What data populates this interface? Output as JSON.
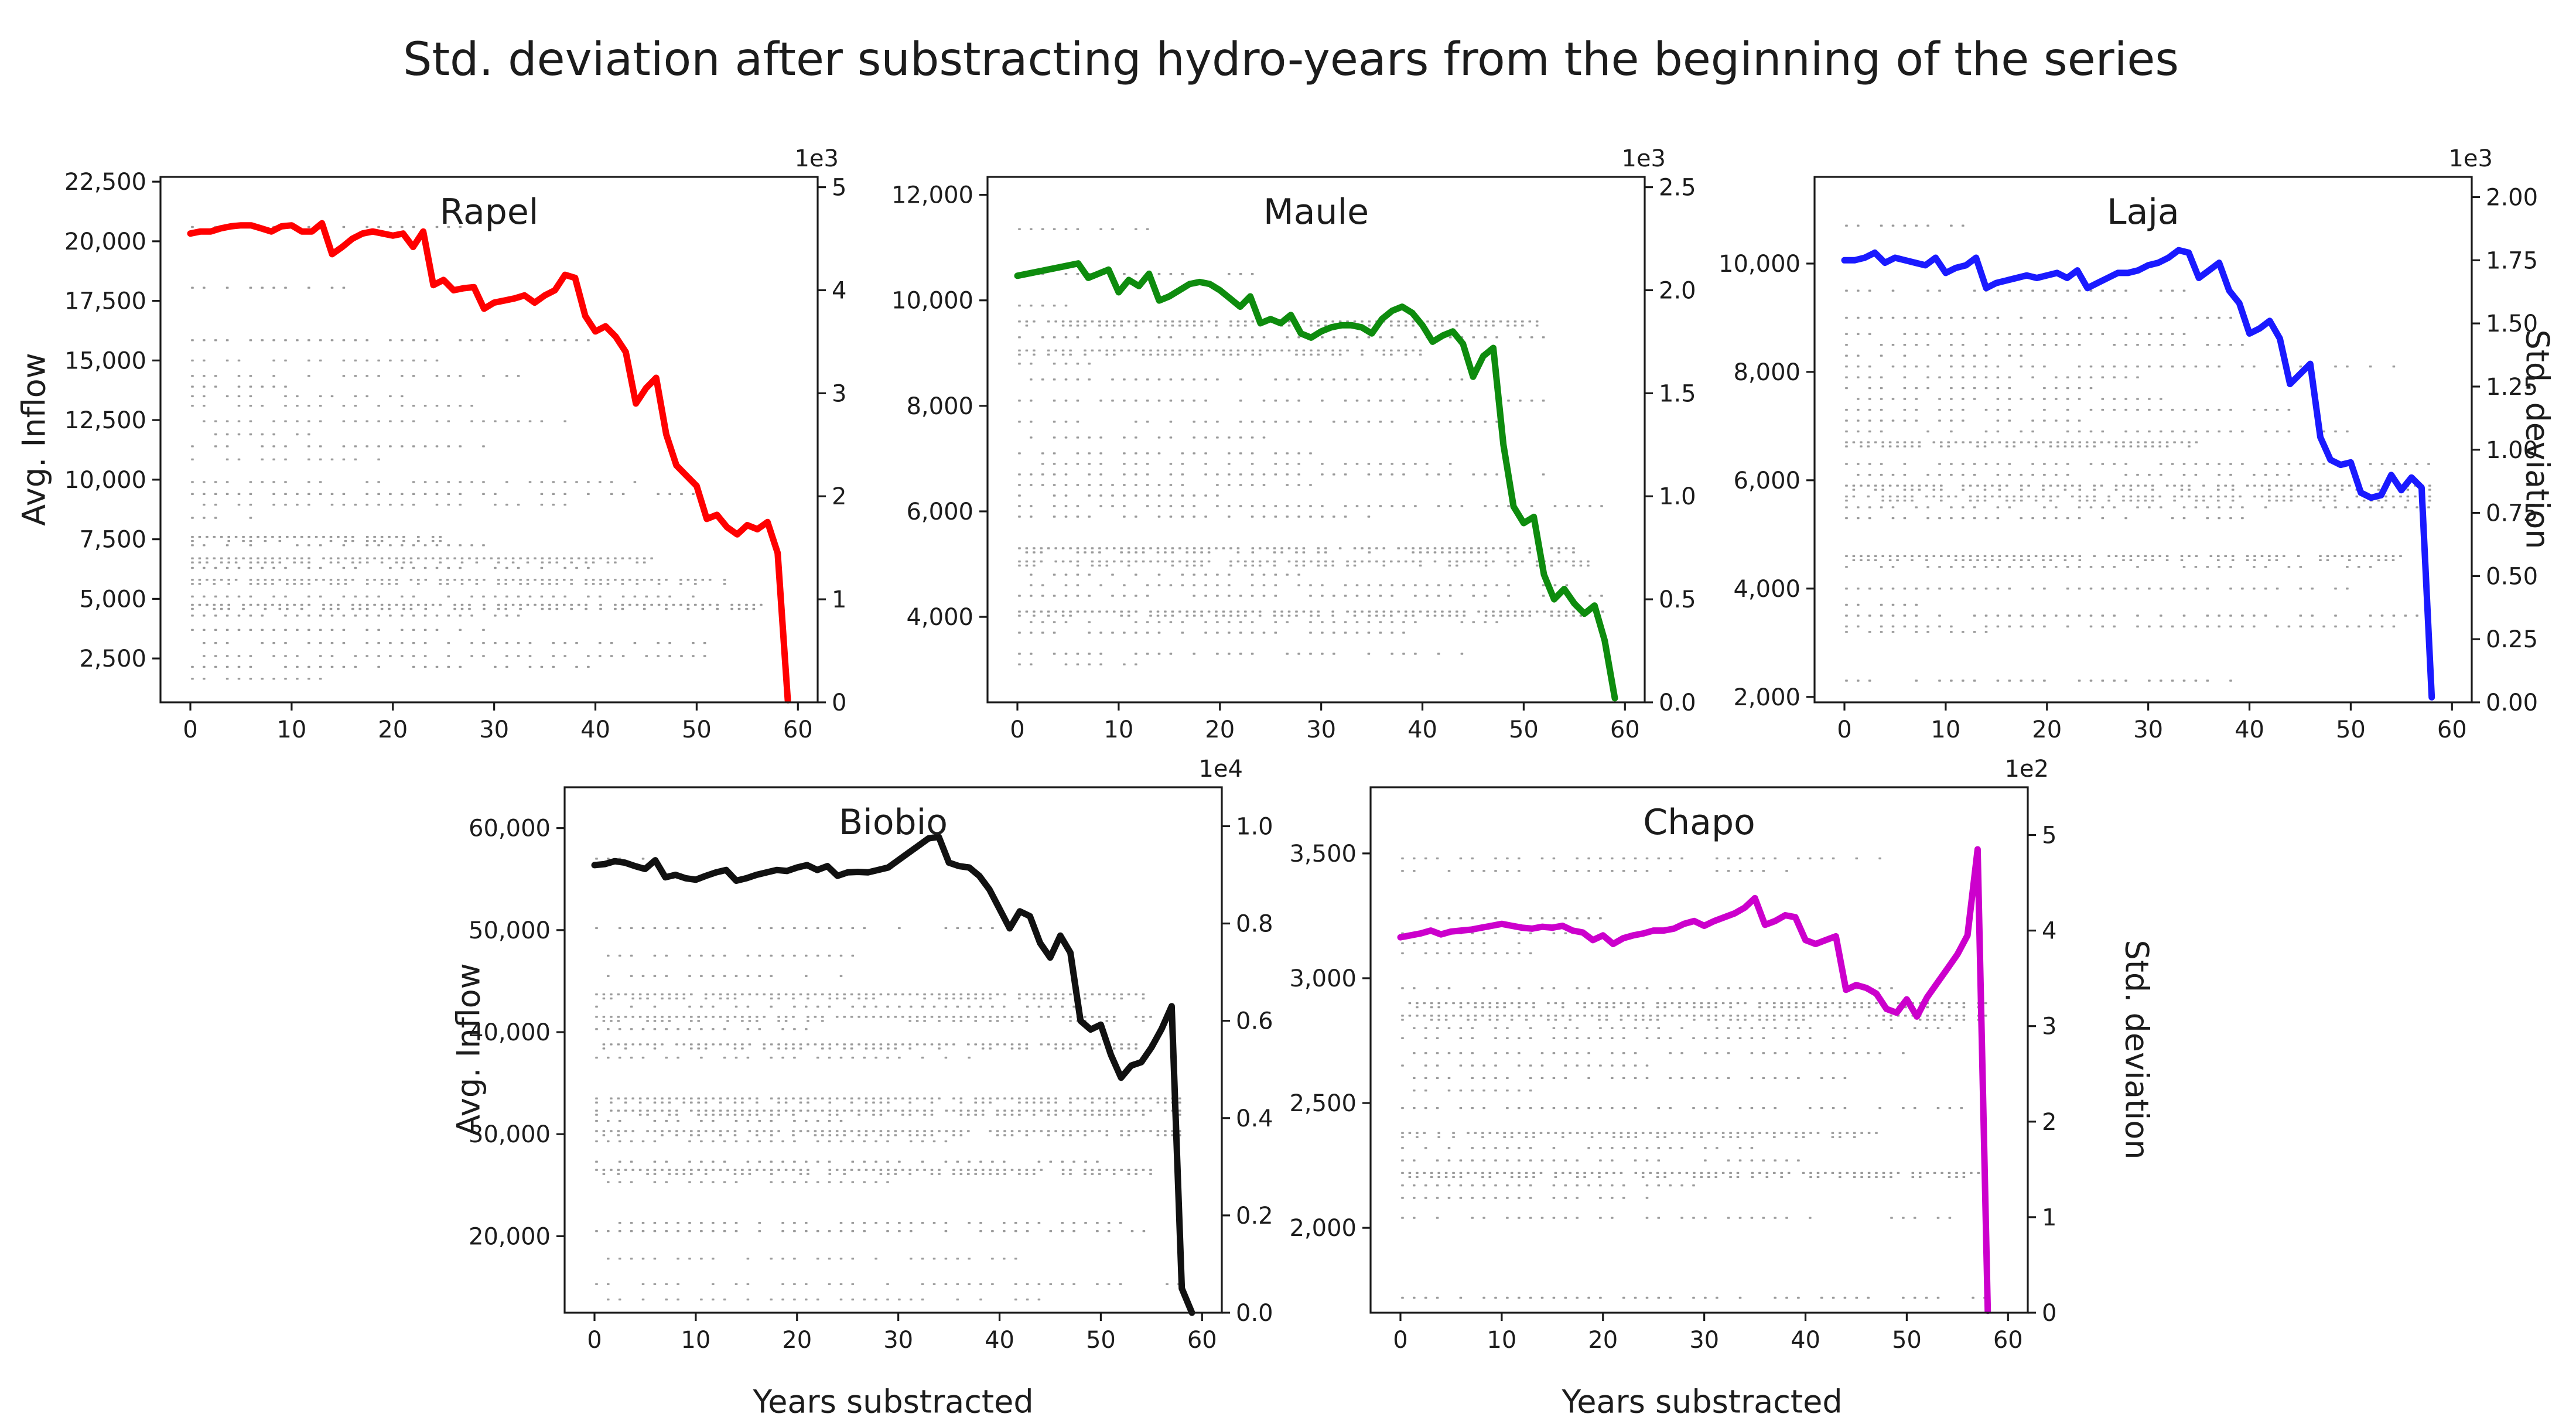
{
  "figure": {
    "suptitle": "Std. deviation after substracting hydro-years from the beginning of the series"
  },
  "labels": {
    "left_axis": "Avg. Inflow",
    "right_axis": "Std. deviation",
    "x_axis": "Years substracted"
  },
  "chart_data": [
    {
      "type": "line",
      "title": "Rapel",
      "line_color": "#ff0000",
      "x_ticks": [
        0,
        10,
        20,
        30,
        40,
        50,
        60
      ],
      "xlim": [
        -2.95,
        61.95
      ],
      "left_axis": {
        "ylim": [
          660,
          22700
        ],
        "ticks": [
          [
            2500,
            "2,500"
          ],
          [
            5000,
            "5,000"
          ],
          [
            7500,
            "7,500"
          ],
          [
            10000,
            "10,000"
          ],
          [
            12500,
            "12,500"
          ],
          [
            15000,
            "15,000"
          ],
          [
            17500,
            "17,500"
          ],
          [
            20000,
            "20,000"
          ],
          [
            22500,
            "22,500"
          ]
        ]
      },
      "right_axis": {
        "ylim": [
          0,
          5.1
        ],
        "offset": "1e3",
        "ticks": [
          [
            0,
            "0"
          ],
          [
            1,
            "1"
          ],
          [
            2,
            "2"
          ],
          [
            3,
            "3"
          ],
          [
            4,
            "4"
          ],
          [
            5,
            "5"
          ]
        ]
      },
      "series_y": [
        4.55,
        4.57,
        4.57,
        4.6,
        4.62,
        4.63,
        4.63,
        4.6,
        4.57,
        4.62,
        4.63,
        4.57,
        4.57,
        4.65,
        4.35,
        4.42,
        4.5,
        4.55,
        4.57,
        4.55,
        4.53,
        4.55,
        4.42,
        4.57,
        4.05,
        4.1,
        4.0,
        4.02,
        4.03,
        3.82,
        3.88,
        3.9,
        3.92,
        3.95,
        3.88,
        3.95,
        4.0,
        4.15,
        4.12,
        3.75,
        3.6,
        3.65,
        3.55,
        3.4,
        2.9,
        3.05,
        3.15,
        2.6,
        2.3,
        2.2,
        2.1,
        1.78,
        1.82,
        1.7,
        1.63,
        1.72,
        1.68,
        1.75,
        1.45,
        0.02
      ],
      "dot_rows": [
        [
          20600,
          27,
          0
        ],
        [
          18050,
          17,
          0
        ],
        [
          15850,
          40,
          0
        ],
        [
          15000,
          25,
          0
        ],
        [
          14350,
          33,
          0
        ],
        [
          13900,
          11,
          0
        ],
        [
          13500,
          23,
          0
        ],
        [
          13100,
          28,
          0
        ],
        [
          12450,
          37,
          0
        ],
        [
          11900,
          12,
          0
        ],
        [
          11400,
          31,
          0
        ],
        [
          10850,
          19,
          0
        ],
        [
          9900,
          45,
          0
        ],
        [
          9400,
          50,
          0
        ],
        [
          8950,
          37,
          0
        ],
        [
          8400,
          7,
          0
        ],
        [
          7600,
          25,
          1
        ],
        [
          7250,
          29,
          0
        ],
        [
          6700,
          46,
          1
        ],
        [
          6300,
          40,
          0
        ],
        [
          5800,
          53,
          1
        ],
        [
          5100,
          50,
          0
        ],
        [
          4750,
          57,
          1
        ],
        [
          4300,
          34,
          0
        ],
        [
          3700,
          30,
          0
        ],
        [
          3150,
          53,
          0
        ],
        [
          2600,
          53,
          0
        ],
        [
          2150,
          40,
          0
        ],
        [
          1650,
          13,
          0
        ]
      ]
    },
    {
      "type": "line",
      "title": "Maule",
      "line_color": "#0e8c0e",
      "x_ticks": [
        0,
        10,
        20,
        30,
        40,
        50,
        60
      ],
      "xlim": [
        -2.95,
        61.95
      ],
      "left_axis": {
        "ylim": [
          2380,
          12340
        ],
        "ticks": [
          [
            4000,
            "4,000"
          ],
          [
            6000,
            "6,000"
          ],
          [
            8000,
            "8,000"
          ],
          [
            10000,
            "10,000"
          ],
          [
            12000,
            "12,000"
          ]
        ]
      },
      "right_axis": {
        "ylim": [
          0,
          2.55
        ],
        "offset": "1e3",
        "ticks": [
          [
            0,
            "0.0"
          ],
          [
            0.5,
            "0.5"
          ],
          [
            1,
            "1.0"
          ],
          [
            1.5,
            "1.5"
          ],
          [
            2,
            "2.0"
          ],
          [
            2.5,
            "2.5"
          ]
        ]
      },
      "series_y": [
        2.07,
        2.08,
        2.09,
        2.1,
        2.11,
        2.12,
        2.13,
        2.06,
        2.08,
        2.1,
        1.99,
        2.05,
        2.02,
        2.08,
        1.95,
        1.97,
        2.0,
        2.03,
        2.04,
        2.03,
        2.0,
        1.96,
        1.92,
        1.97,
        1.84,
        1.86,
        1.84,
        1.88,
        1.79,
        1.77,
        1.8,
        1.82,
        1.83,
        1.83,
        1.82,
        1.79,
        1.86,
        1.9,
        1.92,
        1.89,
        1.83,
        1.75,
        1.78,
        1.8,
        1.74,
        1.58,
        1.68,
        1.72,
        1.25,
        0.95,
        0.87,
        0.9,
        0.62,
        0.5,
        0.55,
        0.48,
        0.43,
        0.47,
        0.3,
        0.02
      ],
      "dot_rows": [
        [
          11350,
          14,
          0
        ],
        [
          10500,
          24,
          0
        ],
        [
          9900,
          7,
          0
        ],
        [
          9600,
          52,
          1
        ],
        [
          9300,
          52,
          0
        ],
        [
          9050,
          40,
          1
        ],
        [
          8800,
          8,
          0
        ],
        [
          8500,
          45,
          0
        ],
        [
          8100,
          52,
          0
        ],
        [
          7700,
          48,
          0
        ],
        [
          7400,
          25,
          0
        ],
        [
          7100,
          30,
          0
        ],
        [
          6900,
          43,
          0
        ],
        [
          6700,
          52,
          0
        ],
        [
          6500,
          30,
          0
        ],
        [
          6300,
          20,
          0
        ],
        [
          6100,
          58,
          0
        ],
        [
          5900,
          35,
          0
        ],
        [
          5300,
          55,
          1
        ],
        [
          5050,
          57,
          1
        ],
        [
          4800,
          30,
          0
        ],
        [
          4600,
          55,
          0
        ],
        [
          4400,
          58,
          0
        ],
        [
          4100,
          58,
          1
        ],
        [
          3900,
          48,
          0
        ],
        [
          3700,
          40,
          0
        ],
        [
          3300,
          45,
          0
        ],
        [
          3100,
          12,
          0
        ]
      ]
    },
    {
      "type": "line",
      "title": "Laja",
      "line_color": "#1a1aff",
      "x_ticks": [
        0,
        10,
        20,
        30,
        40,
        50,
        60
      ],
      "xlim": [
        -2.95,
        61.95
      ],
      "left_axis": {
        "ylim": [
          1900,
          11600
        ],
        "ticks": [
          [
            2000,
            "2,000"
          ],
          [
            4000,
            "4,000"
          ],
          [
            6000,
            "6,000"
          ],
          [
            8000,
            "8,000"
          ],
          [
            10000,
            "10,000"
          ]
        ]
      },
      "right_axis": {
        "ylim": [
          0,
          2.08
        ],
        "offset": "1e3",
        "label_right": true,
        "ticks": [
          [
            0,
            "0.00"
          ],
          [
            0.25,
            "0.25"
          ],
          [
            0.5,
            "0.50"
          ],
          [
            0.75,
            "0.75"
          ],
          [
            1,
            "1.00"
          ],
          [
            1.25,
            "1.25"
          ],
          [
            1.5,
            "1.50"
          ],
          [
            1.75,
            "1.75"
          ],
          [
            2,
            "2.00"
          ]
        ]
      },
      "series_y": [
        1.75,
        1.75,
        1.76,
        1.78,
        1.74,
        1.76,
        1.75,
        1.74,
        1.73,
        1.76,
        1.7,
        1.72,
        1.73,
        1.76,
        1.64,
        1.66,
        1.67,
        1.68,
        1.69,
        1.68,
        1.69,
        1.7,
        1.68,
        1.71,
        1.64,
        1.66,
        1.68,
        1.7,
        1.7,
        1.71,
        1.73,
        1.74,
        1.76,
        1.79,
        1.78,
        1.68,
        1.71,
        1.74,
        1.63,
        1.58,
        1.46,
        1.48,
        1.51,
        1.44,
        1.26,
        1.3,
        1.34,
        1.05,
        0.96,
        0.94,
        0.95,
        0.83,
        0.81,
        0.82,
        0.9,
        0.84,
        0.89,
        0.85,
        0.02
      ],
      "dot_rows": [
        [
          10700,
          14,
          0
        ],
        [
          9500,
          36,
          0
        ],
        [
          9000,
          40,
          0
        ],
        [
          8700,
          35,
          0
        ],
        [
          8500,
          40,
          0
        ],
        [
          8300,
          18,
          0
        ],
        [
          8100,
          55,
          0
        ],
        [
          7900,
          30,
          0
        ],
        [
          7700,
          25,
          0
        ],
        [
          7500,
          33,
          0
        ],
        [
          7300,
          45,
          0
        ],
        [
          7100,
          24,
          0
        ],
        [
          6900,
          50,
          0
        ],
        [
          6700,
          35,
          1
        ],
        [
          6300,
          58,
          0
        ],
        [
          6100,
          45,
          0
        ],
        [
          5900,
          58,
          1
        ],
        [
          5700,
          58,
          1
        ],
        [
          5500,
          58,
          0
        ],
        [
          5300,
          40,
          0
        ],
        [
          4600,
          55,
          1
        ],
        [
          4400,
          52,
          0
        ],
        [
          4000,
          50,
          0
        ],
        [
          3700,
          8,
          0
        ],
        [
          3500,
          58,
          0
        ],
        [
          3300,
          58,
          0
        ],
        [
          3200,
          15,
          0
        ],
        [
          2300,
          40,
          0
        ]
      ]
    },
    {
      "type": "line",
      "title": "Biobio",
      "line_color": "#111111",
      "x_ticks": [
        0,
        10,
        20,
        30,
        40,
        50,
        60
      ],
      "xlim": [
        -2.95,
        61.95
      ],
      "left_axis": {
        "ylim": [
          12500,
          64000
        ],
        "ticks": [
          [
            20000,
            "20,000"
          ],
          [
            30000,
            "30,000"
          ],
          [
            40000,
            "40,000"
          ],
          [
            50000,
            "50,000"
          ],
          [
            60000,
            "60,000"
          ]
        ]
      },
      "right_axis": {
        "ylim": [
          0,
          1.08
        ],
        "offset": "1e4",
        "ticks": [
          [
            0,
            "0.0"
          ],
          [
            0.2,
            "0.2"
          ],
          [
            0.4,
            "0.4"
          ],
          [
            0.6,
            "0.6"
          ],
          [
            0.8,
            "0.8"
          ],
          [
            1,
            "1.0"
          ]
        ]
      },
      "series_y": [
        0.92,
        0.922,
        0.928,
        0.925,
        0.918,
        0.912,
        0.93,
        0.895,
        0.9,
        0.893,
        0.89,
        0.898,
        0.905,
        0.91,
        0.888,
        0.893,
        0.9,
        0.905,
        0.91,
        0.908,
        0.915,
        0.92,
        0.91,
        0.918,
        0.898,
        0.905,
        0.906,
        0.905,
        0.91,
        0.915,
        0.93,
        0.945,
        0.96,
        0.975,
        0.978,
        0.925,
        0.918,
        0.915,
        0.898,
        0.87,
        0.83,
        0.79,
        0.825,
        0.815,
        0.76,
        0.73,
        0.775,
        0.74,
        0.6,
        0.582,
        0.592,
        0.53,
        0.483,
        0.508,
        0.515,
        0.545,
        0.583,
        0.63,
        0.05,
        0.0
      ],
      "dot_rows": [
        [
          57000,
          7,
          0
        ],
        [
          50200,
          40,
          0
        ],
        [
          47500,
          27,
          0
        ],
        [
          45500,
          25,
          0
        ],
        [
          43700,
          55,
          1
        ],
        [
          42500,
          48,
          0
        ],
        [
          41500,
          55,
          1
        ],
        [
          40300,
          22,
          0
        ],
        [
          38800,
          55,
          1
        ],
        [
          37500,
          37,
          0
        ],
        [
          33500,
          58,
          1
        ],
        [
          32300,
          58,
          1
        ],
        [
          31300,
          25,
          0
        ],
        [
          30300,
          58,
          1
        ],
        [
          29300,
          35,
          0
        ],
        [
          27300,
          50,
          0
        ],
        [
          26500,
          55,
          1
        ],
        [
          25300,
          30,
          0
        ],
        [
          21300,
          52,
          0
        ],
        [
          20500,
          55,
          0
        ],
        [
          17800,
          42,
          0
        ],
        [
          15300,
          58,
          0
        ],
        [
          13800,
          45,
          0
        ]
      ]
    },
    {
      "type": "line",
      "title": "Chapo",
      "line_color": "#cc00cc",
      "x_ticks": [
        0,
        10,
        20,
        30,
        40,
        50,
        60
      ],
      "xlim": [
        -2.95,
        61.95
      ],
      "left_axis": {
        "ylim": [
          1660,
          3765
        ],
        "ticks": [
          [
            2000,
            "2,000"
          ],
          [
            2500,
            "2,500"
          ],
          [
            3000,
            "3,000"
          ],
          [
            3500,
            "3,500"
          ]
        ]
      },
      "right_axis": {
        "ylim": [
          0,
          5.5
        ],
        "offset": "1e2",
        "label_right": true,
        "ticks": [
          [
            0,
            "0"
          ],
          [
            1,
            "1"
          ],
          [
            2,
            "2"
          ],
          [
            3,
            "3"
          ],
          [
            4,
            "4"
          ],
          [
            5,
            "5"
          ]
        ]
      },
      "series_y": [
        3.93,
        3.95,
        3.97,
        4.0,
        3.96,
        3.99,
        4.0,
        4.01,
        4.03,
        4.05,
        4.07,
        4.05,
        4.03,
        4.02,
        4.04,
        4.03,
        4.05,
        4.0,
        3.98,
        3.9,
        3.95,
        3.86,
        3.92,
        3.95,
        3.97,
        4.0,
        4.0,
        4.02,
        4.07,
        4.1,
        4.05,
        4.1,
        4.14,
        4.18,
        4.24,
        4.34,
        4.06,
        4.1,
        4.16,
        4.14,
        3.9,
        3.86,
        3.9,
        3.94,
        3.38,
        3.43,
        3.4,
        3.34,
        3.18,
        3.14,
        3.28,
        3.1,
        3.3,
        3.45,
        3.6,
        3.75,
        3.95,
        4.85,
        0.02
      ],
      "dot_rows": [
        [
          3480,
          48,
          0
        ],
        [
          3430,
          39,
          0
        ],
        [
          3240,
          20,
          0
        ],
        [
          3180,
          17,
          0
        ],
        [
          3140,
          12,
          0
        ],
        [
          3100,
          13,
          0
        ],
        [
          2960,
          50,
          0
        ],
        [
          2900,
          58,
          1
        ],
        [
          2850,
          58,
          1
        ],
        [
          2800,
          55,
          0
        ],
        [
          2760,
          45,
          0
        ],
        [
          2700,
          50,
          0
        ],
        [
          2650,
          25,
          0
        ],
        [
          2600,
          45,
          0
        ],
        [
          2550,
          14,
          0
        ],
        [
          2480,
          58,
          0
        ],
        [
          2380,
          47,
          1
        ],
        [
          2320,
          35,
          0
        ],
        [
          2270,
          40,
          0
        ],
        [
          2220,
          58,
          1
        ],
        [
          2170,
          30,
          0
        ],
        [
          2120,
          25,
          0
        ],
        [
          2040,
          55,
          0
        ],
        [
          1720,
          58,
          0
        ]
      ]
    }
  ]
}
